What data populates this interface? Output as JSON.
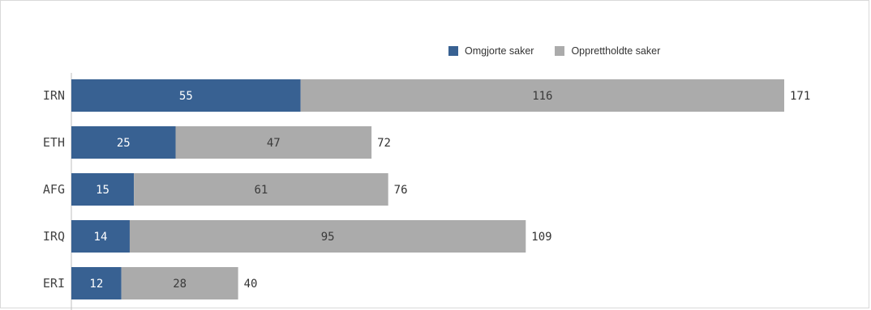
{
  "colors": {
    "omgjorte": "#386192",
    "opprettholdte": "#ababab",
    "text_inside_dark": "#ffffff",
    "text_inside_light": "#3a3a3a",
    "axis": "#bfbfbf"
  },
  "legend": {
    "items": [
      {
        "label": "Omgjorte saker"
      },
      {
        "label": "Opprettholdte saker"
      }
    ]
  },
  "chart_data": {
    "type": "bar",
    "orientation": "horizontal",
    "stacked": true,
    "categories": [
      "IRN",
      "ETH",
      "AFG",
      "IRQ",
      "ERI"
    ],
    "series": [
      {
        "name": "Omgjorte saker",
        "values": [
          55,
          25,
          15,
          14,
          12
        ]
      },
      {
        "name": "Opprettholdte saker",
        "values": [
          116,
          47,
          61,
          95,
          28
        ]
      }
    ],
    "totals": [
      171,
      72,
      76,
      109,
      40
    ],
    "xlim": [
      0,
      171
    ],
    "grid": false,
    "legend_position": "top-right"
  }
}
